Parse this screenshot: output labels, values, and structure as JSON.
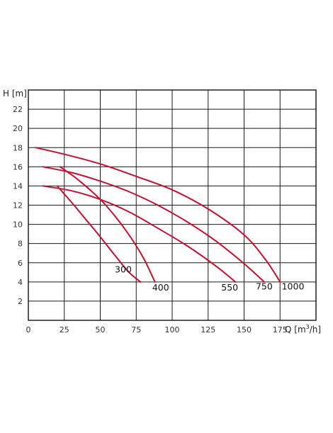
{
  "chart_data": {
    "type": "line",
    "title": "",
    "xlabel": {
      "base": "Q [m",
      "sup": "3",
      "tail": "/h]"
    },
    "ylabel": "H [m]",
    "xlim": [
      0,
      200
    ],
    "ylim": [
      0,
      24
    ],
    "x_ticks": [
      "0",
      "25",
      "50",
      "75",
      "100",
      "125",
      "150",
      "175"
    ],
    "x_tick_values": [
      0,
      25,
      50,
      75,
      100,
      125,
      150,
      175
    ],
    "y_ticks": [
      "2",
      "4",
      "6",
      "8",
      "10",
      "12",
      "14",
      "16",
      "18",
      "20",
      "22"
    ],
    "y_tick_values": [
      2,
      4,
      6,
      8,
      10,
      12,
      14,
      16,
      18,
      20,
      22
    ],
    "grid": true,
    "line_color": "#c8102e",
    "series": [
      {
        "name": "300",
        "x": [
          20,
          30,
          40,
          50,
          60,
          70,
          78
        ],
        "y": [
          14.0,
          12.3,
          10.5,
          8.7,
          6.8,
          5.0,
          4.0
        ]
      },
      {
        "name": "400",
        "x": [
          22,
          35,
          50,
          60,
          70,
          80,
          88
        ],
        "y": [
          16.0,
          14.6,
          12.6,
          10.9,
          8.9,
          6.5,
          4.0
        ]
      },
      {
        "name": "550",
        "x": [
          10,
          30,
          50,
          70,
          90,
          110,
          130,
          144
        ],
        "y": [
          14.0,
          13.5,
          12.6,
          11.3,
          9.6,
          7.8,
          5.7,
          4.0
        ]
      },
      {
        "name": "750",
        "x": [
          10,
          30,
          50,
          70,
          90,
          110,
          130,
          150,
          164
        ],
        "y": [
          16.0,
          15.4,
          14.5,
          13.4,
          12.0,
          10.3,
          8.3,
          5.9,
          4.0
        ]
      },
      {
        "name": "1000",
        "x": [
          5,
          25,
          50,
          75,
          100,
          125,
          150,
          165,
          175
        ],
        "y": [
          18.0,
          17.3,
          16.3,
          15.0,
          13.6,
          11.6,
          8.9,
          6.3,
          4.0
        ]
      }
    ],
    "series_label_positions": [
      {
        "x": 66,
        "y": 5.0
      },
      {
        "x": 92,
        "y": 3.1
      },
      {
        "x": 140,
        "y": 3.1
      },
      {
        "x": 164,
        "y": 3.2
      },
      {
        "x": 184,
        "y": 3.2
      }
    ]
  }
}
